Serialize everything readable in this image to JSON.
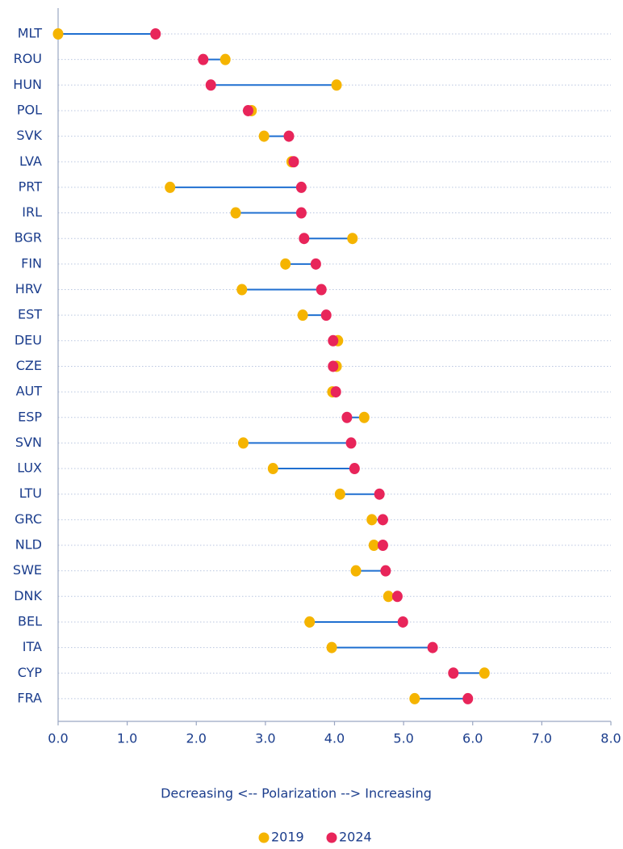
{
  "chart_data": {
    "type": "dumbbell",
    "x_label": "Decreasing <-- Polarization --> Increasing",
    "categories": [
      "MLT",
      "ROU",
      "HUN",
      "POL",
      "SVK",
      "LVA",
      "PRT",
      "IRL",
      "BGR",
      "FIN",
      "HRV",
      "EST",
      "DEU",
      "CZE",
      "AUT",
      "ESP",
      "SVN",
      "LUX",
      "LTU",
      "GRC",
      "NLD",
      "SWE",
      "DNK",
      "BEL",
      "ITA",
      "CYP",
      "FRA"
    ],
    "series": [
      {
        "name": "2019",
        "color": "#f5b400",
        "values": [
          0.0,
          2.42,
          4.03,
          2.8,
          2.98,
          3.38,
          1.62,
          2.57,
          4.26,
          3.29,
          2.66,
          3.54,
          4.05,
          4.03,
          3.97,
          4.43,
          2.68,
          3.11,
          4.08,
          4.54,
          4.57,
          4.31,
          4.78,
          3.64,
          3.96,
          6.17,
          5.16
        ]
      },
      {
        "name": "2024",
        "color": "#e8255a",
        "values": [
          1.41,
          2.1,
          2.21,
          2.75,
          3.34,
          3.41,
          3.52,
          3.52,
          3.56,
          3.73,
          3.81,
          3.88,
          3.98,
          3.98,
          4.02,
          4.18,
          4.24,
          4.29,
          4.65,
          4.7,
          4.7,
          4.74,
          4.91,
          4.99,
          5.42,
          5.72,
          5.93
        ]
      }
    ],
    "connector_color": "#1f6fd0",
    "xlim": [
      0,
      8
    ],
    "xticks": [
      {
        "value": 0,
        "label": "0.0"
      },
      {
        "value": 1,
        "label": "1.0"
      },
      {
        "value": 2,
        "label": "2.0"
      },
      {
        "value": 3,
        "label": "3.0"
      },
      {
        "value": 4,
        "label": "4.0"
      },
      {
        "value": 5,
        "label": "5.0"
      },
      {
        "value": 6,
        "label": "6.0"
      },
      {
        "value": 7,
        "label": "7.0"
      },
      {
        "value": 8,
        "label": "8.0"
      }
    ],
    "grid": true,
    "legend": "bottom"
  }
}
